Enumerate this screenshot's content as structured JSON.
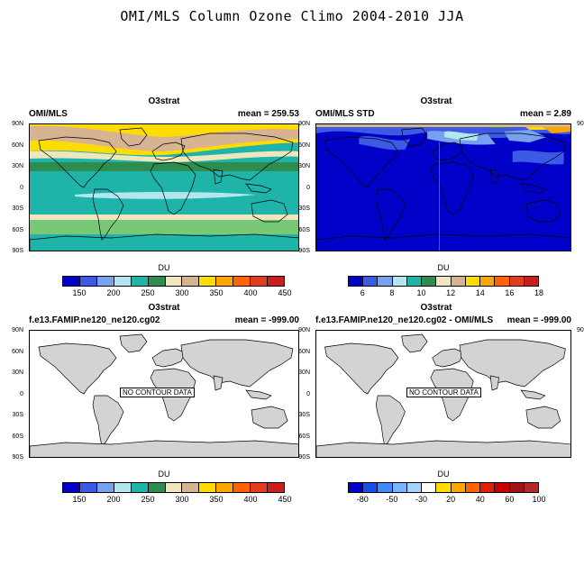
{
  "main_title": "OMI/MLS Column Ozone Climo 2004-2010 JJA",
  "lat_labels": [
    "90N",
    "60N",
    "30N",
    "0",
    "30S",
    "60S",
    "90S"
  ],
  "panels": [
    {
      "title": "O3strat",
      "left": "OMI/MLS",
      "right": "mean = 259.53",
      "colorbar_title": "DU",
      "colors": [
        "#0000c8",
        "#3c5ae6",
        "#78a0f0",
        "#b4e6f0",
        "#1eb4aa",
        "#2d8c50",
        "#f0e6be",
        "#d7b491",
        "#ffdc00",
        "#ffa500",
        "#ff6400",
        "#e63c1e",
        "#c81e1e"
      ],
      "tick_labels": [
        "150",
        "200",
        "250",
        "300",
        "350",
        "400",
        "450"
      ]
    },
    {
      "title": "O3strat",
      "left": "OMI/MLS STD",
      "right": "mean =   2.89",
      "colorbar_title": "DU",
      "colors": [
        "#0000c8",
        "#3c5ae6",
        "#78a0f0",
        "#b4e6f0",
        "#1eb4aa",
        "#2d8c50",
        "#f0e6be",
        "#d7b491",
        "#ffdc00",
        "#ffa500",
        "#ff6400",
        "#e63c1e",
        "#c81e1e"
      ],
      "tick_labels": [
        "6",
        "8",
        "10",
        "12",
        "14",
        "16",
        "18"
      ]
    },
    {
      "title": "O3strat",
      "left": "f.e13.FAMIP.ne120_ne120.cg02",
      "right": "mean = -999.00",
      "nodata": "NO CONTOUR DATA",
      "colorbar_title": "DU",
      "colors": [
        "#0000c8",
        "#3c5ae6",
        "#78a0f0",
        "#b4e6f0",
        "#1eb4aa",
        "#2d8c50",
        "#f0e6be",
        "#d7b491",
        "#ffdc00",
        "#ffa500",
        "#ff6400",
        "#e63c1e",
        "#c81e1e"
      ],
      "tick_labels": [
        "150",
        "200",
        "250",
        "300",
        "350",
        "400",
        "450"
      ]
    },
    {
      "title": "O3strat",
      "left": "f.e13.FAMIP.ne120_ne120.cg02 - OMI/MLS",
      "right": "mean = -999.00",
      "nodata": "NO CONTOUR DATA",
      "colorbar_title": "DU",
      "colors": [
        "#0000c8",
        "#1450e6",
        "#3c8cff",
        "#78b4ff",
        "#aad2ff",
        "#ffffff",
        "#ffdc00",
        "#ffa500",
        "#ff6400",
        "#e61e00",
        "#c80000",
        "#a01414",
        "#b42828"
      ],
      "tick_labels": [
        "-80",
        "-50",
        "-30",
        "20",
        "40",
        "60",
        "100"
      ]
    }
  ]
}
